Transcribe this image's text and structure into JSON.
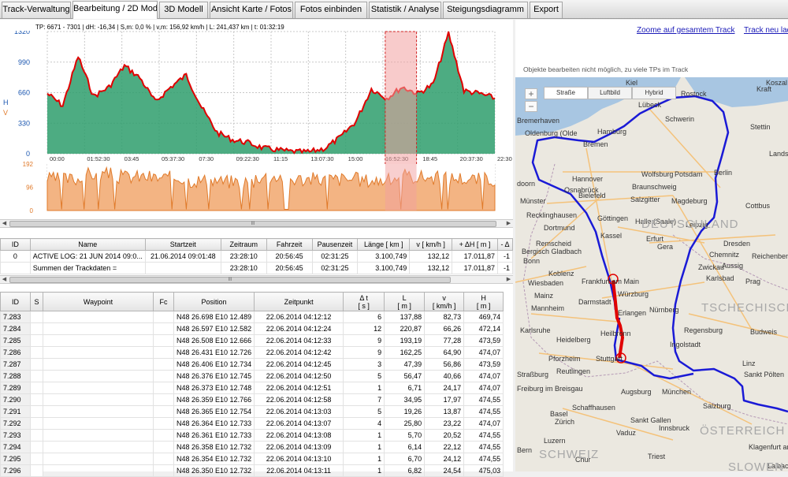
{
  "tabs": [
    "Track-Verwaltung",
    "Bearbeitung / 2D Modell",
    "3D Modell",
    "Ansicht Karte / Fotos",
    "Fotos einbinden",
    "Statistik / Analyse",
    "Steigungsdiagramm",
    "Export"
  ],
  "profile": {
    "header": "TP: 6671 - 7301 | dH: -16,34  | S,m: 0,0 % | v,m: 156,92 km/h | L: 241,437 km | t: 01:32:19",
    "axis_h_label": "H",
    "axis_v_label": "V",
    "y_ticks": [
      "1320",
      "990",
      "660",
      "330",
      "0"
    ],
    "v_ticks": [
      "192",
      "96",
      "0"
    ],
    "x_ticks": [
      "00:00",
      "01:52:30",
      "03:45",
      "05:37:30",
      "07:30",
      "09:22:30",
      "11:15",
      "13:07:30",
      "15:00",
      "16:52:30",
      "18:45",
      "20:37:30",
      "22:30"
    ],
    "colors": {
      "line": "#e00000",
      "fill": "#2e9d6c",
      "speed": "#e07a2a",
      "highlight": "#f2a0a0"
    }
  },
  "chart_data": [
    {
      "type": "area",
      "y_label": "H",
      "ylim": [
        0,
        1320
      ],
      "x": [
        "00:00",
        "00:45",
        "01:15",
        "01:52:30",
        "02:30",
        "03:00",
        "03:45",
        "04:30",
        "05:00",
        "05:37:30",
        "06:30",
        "07:30",
        "08:15",
        "09:22:30",
        "10:15",
        "11:15",
        "12:15",
        "13:07:30",
        "14:00",
        "15:00",
        "16:00",
        "16:52:30",
        "17:45",
        "18:45",
        "19:30",
        "20:37:30",
        "21:00",
        "21:30",
        "22:30",
        "23:00"
      ],
      "values": [
        650,
        520,
        1050,
        620,
        720,
        950,
        820,
        560,
        720,
        850,
        500,
        230,
        150,
        120,
        60,
        40,
        20,
        20,
        60,
        180,
        350,
        700,
        600,
        720,
        650,
        750,
        1300,
        680,
        650,
        600
      ]
    },
    {
      "type": "area",
      "y_label": "V",
      "ylim": [
        0,
        192
      ],
      "x": [
        "00:00",
        "01:52:30",
        "03:45",
        "05:37:30",
        "07:30",
        "09:22:30",
        "11:15",
        "13:07:30",
        "15:00",
        "16:52:30",
        "18:45",
        "20:37:30",
        "22:30"
      ],
      "values": [
        130,
        150,
        140,
        135,
        125,
        120,
        140,
        130,
        130,
        125,
        140,
        135,
        130
      ]
    }
  ],
  "h_scroll_glyph": "III",
  "track_table": {
    "headers": [
      "ID",
      "Name",
      "Startzeit",
      "Zeitraum",
      "Fahrzeit",
      "Pausenzeit",
      "Länge  [ km ]",
      "v  [ km/h ]",
      "+ ΔH  [ m ]",
      "- Δ"
    ],
    "rows": [
      [
        "0",
        "ACTIVE LOG: 21 JUN 2014 09:0...",
        "21.06.2014 09:01:48",
        "23:28:10",
        "20:56:45",
        "02:31:25",
        "3.100,749",
        "132,12",
        "17.011,87",
        "-1"
      ],
      [
        "",
        "Summen der Trackdaten =",
        "",
        "23:28:10",
        "20:56:45",
        "02:31:25",
        "3.100,749",
        "132,12",
        "17.011,87",
        "-1"
      ]
    ]
  },
  "waypoint_table": {
    "headers": [
      "ID",
      "S",
      "Waypoint",
      "Fc",
      "Position",
      "Zeitpunkt",
      "Δ t\n[ s ]",
      "L\n[ m ]",
      "v\n[ km/h ]",
      "H\n[ m ]"
    ],
    "rows": [
      [
        "7.283",
        "",
        "",
        "",
        "N48 26.698 E10 12.489",
        "22.06.2014 04:12:12",
        "6",
        "137,88",
        "82,73",
        "469,74"
      ],
      [
        "7.284",
        "",
        "",
        "",
        "N48 26.597 E10 12.582",
        "22.06.2014 04:12:24",
        "12",
        "220,87",
        "66,26",
        "472,14"
      ],
      [
        "7.285",
        "",
        "",
        "",
        "N48 26.508 E10 12.666",
        "22.06.2014 04:12:33",
        "9",
        "193,19",
        "77,28",
        "473,59"
      ],
      [
        "7.286",
        "",
        "",
        "",
        "N48 26.431 E10 12.726",
        "22.06.2014 04:12:42",
        "9",
        "162,25",
        "64,90",
        "474,07"
      ],
      [
        "7.287",
        "",
        "",
        "",
        "N48 26.406 E10 12.734",
        "22.06.2014 04:12:45",
        "3",
        "47,39",
        "56,86",
        "473,59"
      ],
      [
        "7.288",
        "",
        "",
        "",
        "N48 26.376 E10 12.745",
        "22.06.2014 04:12:50",
        "5",
        "56,47",
        "40,66",
        "474,07"
      ],
      [
        "7.289",
        "",
        "",
        "",
        "N48 26.373 E10 12.748",
        "22.06.2014 04:12:51",
        "1",
        "6,71",
        "24,17",
        "474,07"
      ],
      [
        "7.290",
        "",
        "",
        "",
        "N48 26.359 E10 12.766",
        "22.06.2014 04:12:58",
        "7",
        "34,95",
        "17,97",
        "474,55"
      ],
      [
        "7.291",
        "",
        "",
        "",
        "N48 26.365 E10 12.754",
        "22.06.2014 04:13:03",
        "5",
        "19,26",
        "13,87",
        "474,55"
      ],
      [
        "7.292",
        "",
        "",
        "",
        "N48 26.364 E10 12.733",
        "22.06.2014 04:13:07",
        "4",
        "25,80",
        "23,22",
        "474,07"
      ],
      [
        "7.293",
        "",
        "",
        "",
        "N48 26.361 E10 12.733",
        "22.06.2014 04:13:08",
        "1",
        "5,70",
        "20,52",
        "474,55"
      ],
      [
        "7.294",
        "",
        "",
        "",
        "N48 26.358 E10 12.732",
        "22.06.2014 04:13:09",
        "1",
        "6,14",
        "22,12",
        "474,55"
      ],
      [
        "7.295",
        "",
        "",
        "",
        "N48 26.354 E10 12.732",
        "22.06.2014 04:13:10",
        "1",
        "6,70",
        "24,12",
        "474,55"
      ],
      [
        "7.296",
        "",
        "",
        "",
        "N48 26.350 E10 12.732",
        "22.06.2014 04:13:11",
        "1",
        "6,82",
        "24,54",
        "475,03"
      ]
    ]
  },
  "right": {
    "zoom_link": "Zoome auf gesamtem Track",
    "reload_link": "Track neu lade",
    "notice": "Objekte bearbeiten nicht möglich, zu viele TPs im Track",
    "map_types": [
      "Straße",
      "Luftbild",
      "Hybrid"
    ],
    "zoom_in": "+",
    "zoom_out": "−",
    "cities": [
      "Kiel",
      "Rostock",
      "Koszal",
      "Lübeck",
      "Schwerin",
      "Bremerhaven",
      "Oldenburg (Olde",
      "Hamburg",
      "Bremen",
      "Stettin",
      "Landsb",
      "Hannover",
      "Wolfsburg",
      "Potsdam",
      "Berlin",
      "Osnabrück",
      "Bielefeld",
      "Braunschweig",
      "Salzgitter",
      "Magdeburg",
      "Münster",
      "doorn",
      "Recklinghausen",
      "Göttingen",
      "Halle (Saale)",
      "Dortmund",
      "Kassel",
      "Leipzig",
      "Cottbus",
      "Remscheid",
      "Erfurt",
      "Bergisch Gladbach",
      "Gera",
      "Dresden",
      "Bonn",
      "Chemnitz",
      "Koblenz",
      "Zwickau",
      "Reichenberg",
      "Aussig",
      "Wiesbaden",
      "Frankfurt am Main",
      "Karlsbad",
      "Prag",
      "Mainz",
      "Würzburg",
      "Darmstadt",
      "Mannheim",
      "Erlangen",
      "Nürnberg",
      "Karlsruhe",
      "Heilbronn",
      "Heidelberg",
      "Pforzheim",
      "Stuttgart",
      "Ingolstadt",
      "Regensburg",
      "Budweis",
      "Straßburg",
      "Reutlingen",
      "Freiburg im Breisgau",
      "Augsburg",
      "München",
      "Linz",
      "Sankt Pölten",
      "Basel",
      "Schaffhausen",
      "Salzburg",
      "Zürich",
      "Sankt Gallen",
      "Luzern",
      "Vaduz",
      "Innsbruck",
      "Bern",
      "Chur",
      "Klagenfurt am Wörthersee",
      "Triest",
      "Laibach",
      "Kraft"
    ],
    "countries": [
      "DEUTSCHLAND",
      "TSCHECHISCHE",
      "ÖSTERREICH",
      "SCHWEIZ",
      "SLOWEN"
    ]
  }
}
